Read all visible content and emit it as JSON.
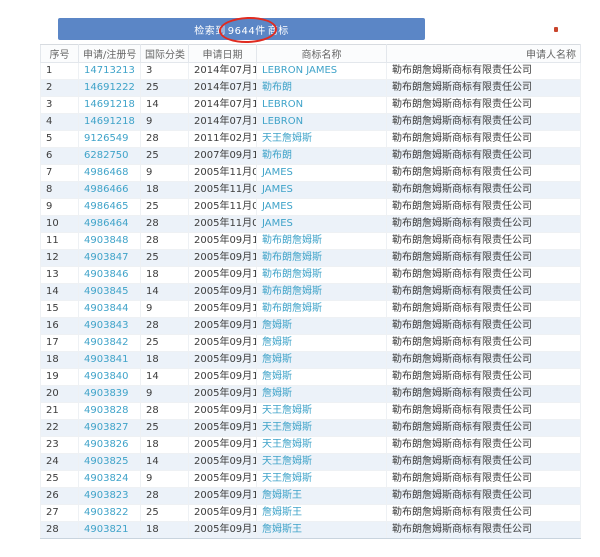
{
  "colors": {
    "banner_bg": "#5b86c6",
    "banner_text": "#ffffff",
    "link": "#3fa3c9",
    "row_alt_bg": "#ecf2f9",
    "header_text": "#666666",
    "body_text": "#3c3c3c",
    "annotation_red": "#e02b20"
  },
  "banner": {
    "prefix": "检索到",
    "count": "9644件",
    "suffix": "商标"
  },
  "table": {
    "columns": [
      "序号",
      "申请/注册号",
      "国际分类",
      "申请日期",
      "商标名称",
      "申请人名称"
    ],
    "rows": [
      [
        "1",
        "14713213",
        "3",
        "2014年07月15日",
        "LEBRON JAMES",
        "勒布朗詹姆斯商标有限责任公司"
      ],
      [
        "2",
        "14691222",
        "25",
        "2014年07月14日",
        "勒布朗",
        "勒布朗詹姆斯商标有限责任公司"
      ],
      [
        "3",
        "14691218",
        "14",
        "2014年07月14日",
        "LEBRON",
        "勒布朗詹姆斯商标有限责任公司"
      ],
      [
        "4",
        "14691218",
        "9",
        "2014年07月14日",
        "LEBRON",
        "勒布朗詹姆斯商标有限责任公司"
      ],
      [
        "5",
        "9126549",
        "28",
        "2011年02月17日",
        "天王詹姆斯",
        "勒布朗詹姆斯商标有限责任公司"
      ],
      [
        "6",
        "6282750",
        "25",
        "2007年09月18日",
        "勒布朗",
        "勒布朗詹姆斯商标有限责任公司"
      ],
      [
        "7",
        "4986468",
        "9",
        "2005年11月07日",
        "JAMES",
        "勒布朗詹姆斯商标有限责任公司"
      ],
      [
        "8",
        "4986466",
        "18",
        "2005年11月07日",
        "JAMES",
        "勒布朗詹姆斯商标有限责任公司"
      ],
      [
        "9",
        "4986465",
        "25",
        "2005年11月07日",
        "JAMES",
        "勒布朗詹姆斯商标有限责任公司"
      ],
      [
        "10",
        "4986464",
        "28",
        "2005年11月07日",
        "JAMES",
        "勒布朗詹姆斯商标有限责任公司"
      ],
      [
        "11",
        "4903848",
        "28",
        "2005年09月19日",
        "勒布朗詹姆斯",
        "勒布朗詹姆斯商标有限责任公司"
      ],
      [
        "12",
        "4903847",
        "25",
        "2005年09月19日",
        "勒布朗詹姆斯",
        "勒布朗詹姆斯商标有限责任公司"
      ],
      [
        "13",
        "4903846",
        "18",
        "2005年09月19日",
        "勒布朗詹姆斯",
        "勒布朗詹姆斯商标有限责任公司"
      ],
      [
        "14",
        "4903845",
        "14",
        "2005年09月19日",
        "勒布朗詹姆斯",
        "勒布朗詹姆斯商标有限责任公司"
      ],
      [
        "15",
        "4903844",
        "9",
        "2005年09月19日",
        "勒布朗詹姆斯",
        "勒布朗詹姆斯商标有限责任公司"
      ],
      [
        "16",
        "4903843",
        "28",
        "2005年09月19日",
        "詹姆斯",
        "勒布朗詹姆斯商标有限责任公司"
      ],
      [
        "17",
        "4903842",
        "25",
        "2005年09月19日",
        "詹姆斯",
        "勒布朗詹姆斯商标有限责任公司"
      ],
      [
        "18",
        "4903841",
        "18",
        "2005年09月19日",
        "詹姆斯",
        "勒布朗詹姆斯商标有限责任公司"
      ],
      [
        "19",
        "4903840",
        "14",
        "2005年09月19日",
        "詹姆斯",
        "勒布朗詹姆斯商标有限责任公司"
      ],
      [
        "20",
        "4903839",
        "9",
        "2005年09月19日",
        "詹姆斯",
        "勒布朗詹姆斯商标有限责任公司"
      ],
      [
        "21",
        "4903828",
        "28",
        "2005年09月19日",
        "天王詹姆斯",
        "勒布朗詹姆斯商标有限责任公司"
      ],
      [
        "22",
        "4903827",
        "25",
        "2005年09月19日",
        "天王詹姆斯",
        "勒布朗詹姆斯商标有限责任公司"
      ],
      [
        "23",
        "4903826",
        "18",
        "2005年09月19日",
        "天王詹姆斯",
        "勒布朗詹姆斯商标有限责任公司"
      ],
      [
        "24",
        "4903825",
        "14",
        "2005年09月19日",
        "天王詹姆斯",
        "勒布朗詹姆斯商标有限责任公司"
      ],
      [
        "25",
        "4903824",
        "9",
        "2005年09月19日",
        "天王詹姆斯",
        "勒布朗詹姆斯商标有限责任公司"
      ],
      [
        "26",
        "4903823",
        "28",
        "2005年09月19日",
        "詹姆斯王",
        "勒布朗詹姆斯商标有限责任公司"
      ],
      [
        "27",
        "4903822",
        "25",
        "2005年09月19日",
        "詹姆斯王",
        "勒布朗詹姆斯商标有限责任公司"
      ],
      [
        "28",
        "4903821",
        "18",
        "2005年09月19日",
        "詹姆斯王",
        "勒布朗詹姆斯商标有限责任公司"
      ]
    ]
  }
}
